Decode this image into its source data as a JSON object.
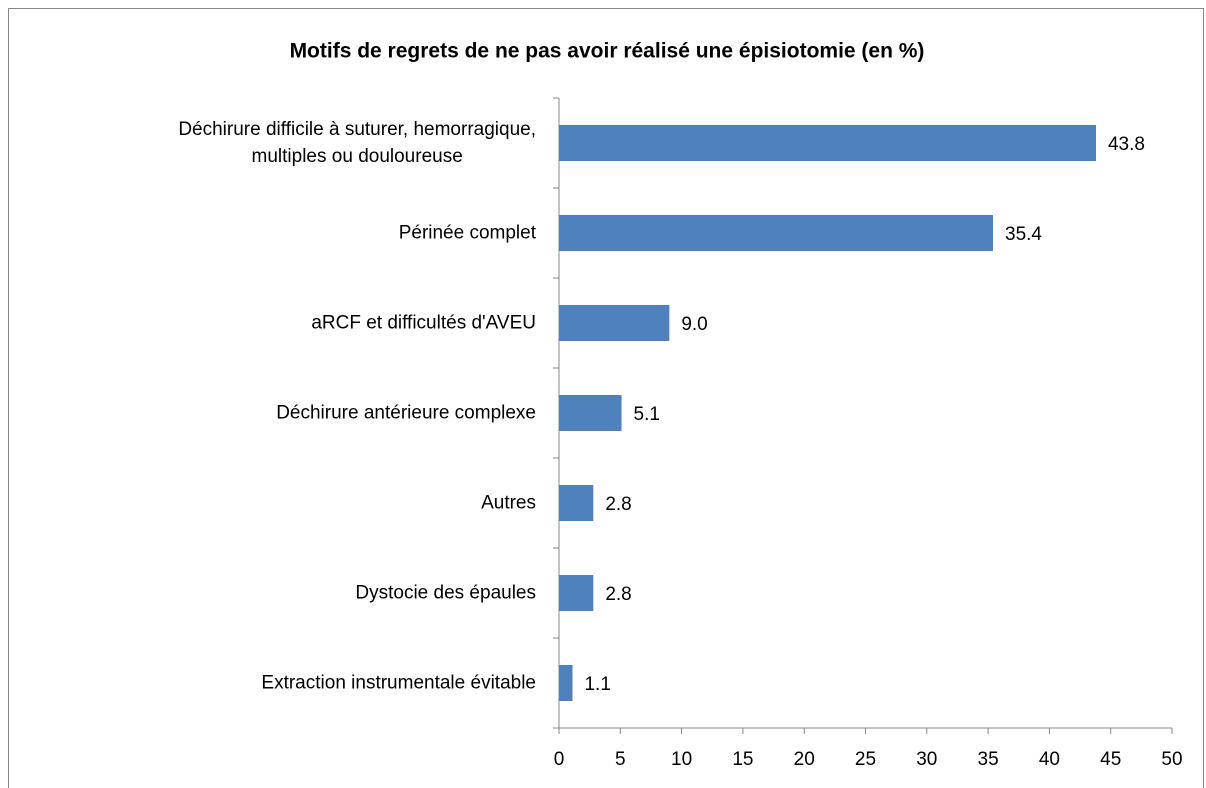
{
  "chart_data": {
    "type": "bar",
    "orientation": "horizontal",
    "title": "Motifs de regrets de ne pas avoir réalisé une épisiotomie (en %)",
    "categories": [
      "Déchirure difficile à suturer, hemorragique,\nmultiples ou douloureuse",
      "Périnée complet",
      "aRCF et difficultés d'AVEU",
      "Déchirure antérieure complexe",
      "Autres",
      "Dystocie des épaules",
      "Extraction instrumentale évitable"
    ],
    "values": [
      43.8,
      35.4,
      9,
      5.1,
      2.8,
      2.8,
      1.1
    ],
    "value_labels": [
      "43.8",
      "35.4",
      "9.0",
      "5.1",
      "2.8",
      "2.8",
      "1.1"
    ],
    "color": "#4f81bd",
    "xlim": [
      0,
      50
    ],
    "xticks": [
      0,
      5,
      10,
      15,
      20,
      25,
      30,
      35,
      40,
      45,
      50
    ]
  }
}
